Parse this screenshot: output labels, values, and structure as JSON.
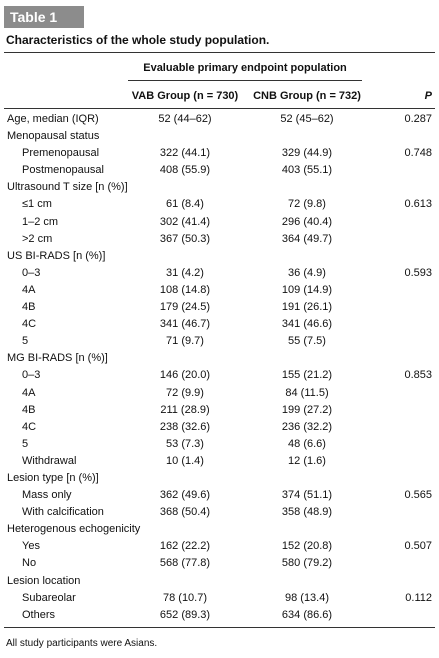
{
  "header": {
    "label": "Table 1",
    "title": "Characteristics of the whole study population."
  },
  "table": {
    "group_header": "Evaluable primary endpoint population",
    "columns": [
      "VAB Group (n = 730)",
      "CNB Group (n = 732)",
      "P"
    ],
    "sections": [
      {
        "label": "Age, median (IQR)",
        "vab": "52 (44–62)",
        "cnb": "52 (45–62)",
        "p": "0.287"
      },
      {
        "label": "Menopausal status",
        "rows": [
          {
            "label": "Premenopausal",
            "vab": "322 (44.1)",
            "cnb": "329 (44.9)",
            "p": "0.748"
          },
          {
            "label": "Postmenopausal",
            "vab": "408 (55.9)",
            "cnb": "403 (55.1)"
          }
        ]
      },
      {
        "label": "Ultrasound T size [n (%)]",
        "rows": [
          {
            "label": "≤1 cm",
            "vab": "61 (8.4)",
            "cnb": "72 (9.8)",
            "p": "0.613"
          },
          {
            "label": "1–2 cm",
            "vab": "302 (41.4)",
            "cnb": "296 (40.4)"
          },
          {
            "label": ">2 cm",
            "vab": "367 (50.3)",
            "cnb": "364 (49.7)"
          }
        ]
      },
      {
        "label": "US BI-RADS [n (%)]",
        "rows": [
          {
            "label": "0–3",
            "vab": "31 (4.2)",
            "cnb": "36 (4.9)",
            "p": "0.593"
          },
          {
            "label": "4A",
            "vab": "108 (14.8)",
            "cnb": "109 (14.9)"
          },
          {
            "label": "4B",
            "vab": "179 (24.5)",
            "cnb": "191 (26.1)"
          },
          {
            "label": "4C",
            "vab": "341 (46.7)",
            "cnb": "341 (46.6)"
          },
          {
            "label": "5",
            "vab": "71 (9.7)",
            "cnb": "55 (7.5)"
          }
        ]
      },
      {
        "label": "MG BI-RADS [n (%)]",
        "rows": [
          {
            "label": "0–3",
            "vab": "146 (20.0)",
            "cnb": "155 (21.2)",
            "p": "0.853"
          },
          {
            "label": "4A",
            "vab": "72 (9.9)",
            "cnb": "84 (11.5)"
          },
          {
            "label": "4B",
            "vab": "211 (28.9)",
            "cnb": "199 (27.2)"
          },
          {
            "label": "4C",
            "vab": "238 (32.6)",
            "cnb": "236 (32.2)"
          },
          {
            "label": "5",
            "vab": "53 (7.3)",
            "cnb": "48 (6.6)"
          },
          {
            "label": "Withdrawal",
            "vab": "10 (1.4)",
            "cnb": "12 (1.6)"
          }
        ]
      },
      {
        "label": "Lesion type [n (%)]",
        "rows": [
          {
            "label": "Mass only",
            "vab": "362 (49.6)",
            "cnb": "374 (51.1)",
            "p": "0.565"
          },
          {
            "label": "With calcification",
            "vab": "368 (50.4)",
            "cnb": "358 (48.9)"
          }
        ]
      },
      {
        "label": "Heterogenous echogenicity",
        "rows": [
          {
            "label": "Yes",
            "vab": "162 (22.2)",
            "cnb": "152 (20.8)",
            "p": "0.507"
          },
          {
            "label": "No",
            "vab": "568 (77.8)",
            "cnb": "580 (79.2)"
          }
        ]
      },
      {
        "label": "Lesion location",
        "rows": [
          {
            "label": "Subareolar",
            "vab": "78 (10.7)",
            "cnb": "98 (13.4)",
            "p": "0.112"
          },
          {
            "label": "Others",
            "vab": "652 (89.3)",
            "cnb": "634 (86.6)"
          }
        ]
      }
    ]
  },
  "footnote": "All study participants were Asians."
}
